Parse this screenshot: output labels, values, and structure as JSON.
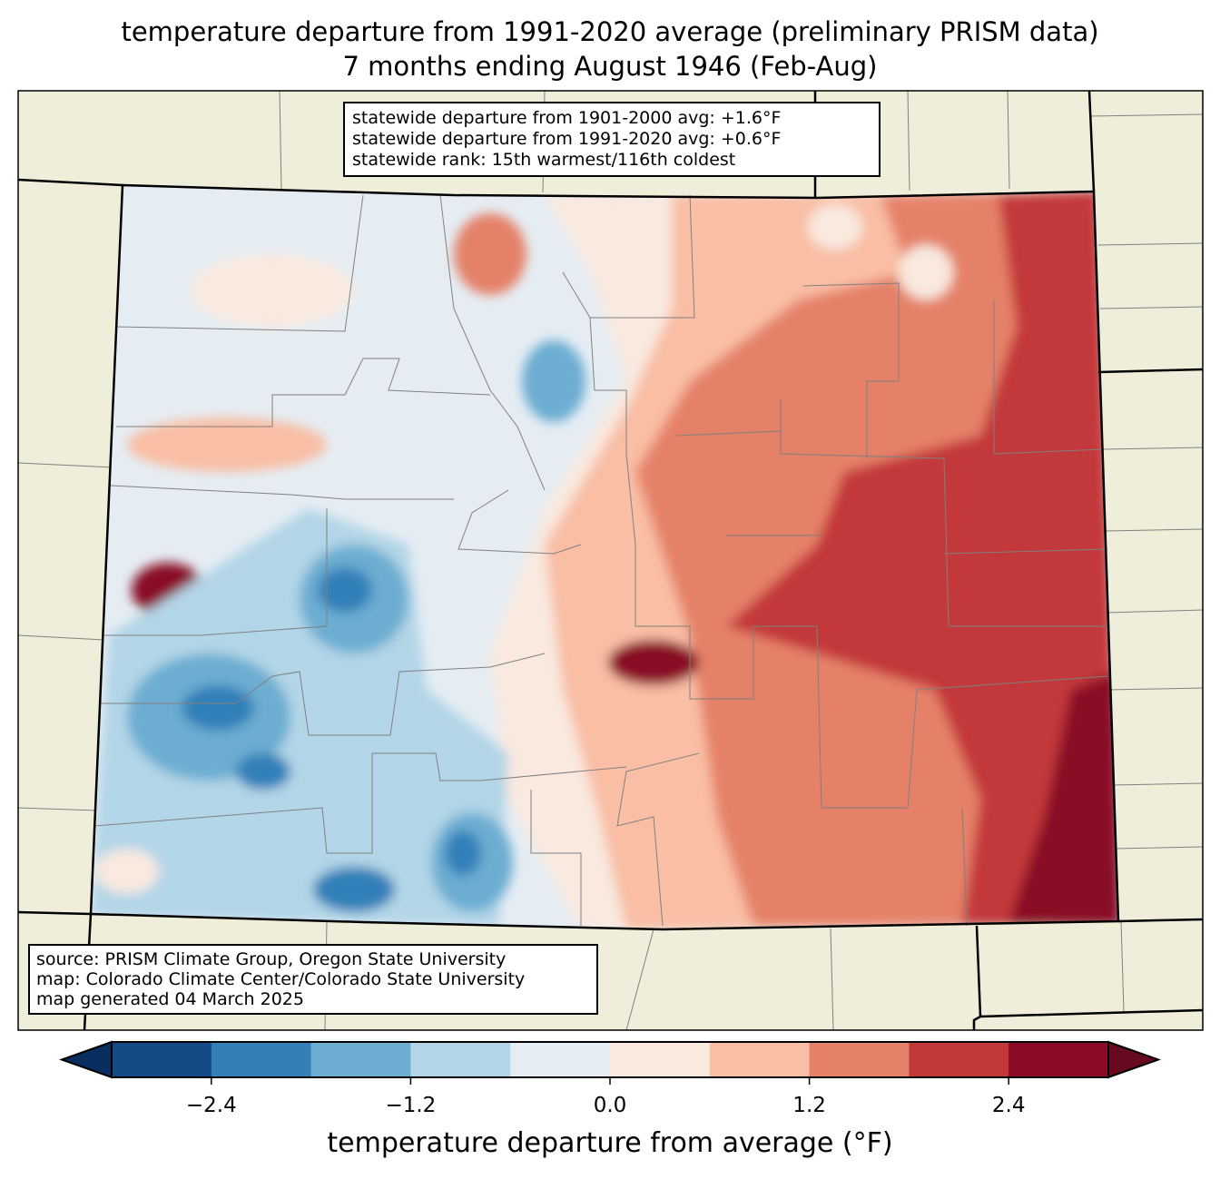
{
  "title": {
    "line1": "temperature departure from 1991-2020 average (preliminary PRISM data)",
    "line2": "7 months ending August 1946 (Feb-Aug)"
  },
  "info_box": {
    "line1": "statewide departure from 1901-2000 avg: +1.6°F",
    "line2": "statewide departure from 1991-2020 avg: +0.6°F",
    "line3": "statewide rank: 15th warmest/116th coldest"
  },
  "source_box": {
    "line1": "source: PRISM Climate Group, Oregon State University",
    "line2": "map: Colorado Climate Center/Colorado State University",
    "line3": "map generated 04 March 2025"
  },
  "colorbar": {
    "label": "temperature departure from average (°F)",
    "ticks": [
      "−2.4",
      "−1.2",
      "0.0",
      "1.2",
      "2.4"
    ],
    "bins": [
      -3.0,
      -2.4,
      -1.8,
      -1.2,
      -0.6,
      0.0,
      0.6,
      1.2,
      1.8,
      2.4,
      3.0
    ],
    "colors": [
      "#154a86",
      "#3380b9",
      "#6cadd1",
      "#b2d5e7",
      "#e5edf3",
      "#f9e9df",
      "#f9bea4",
      "#e58169",
      "#c3393a",
      "#8a0b26"
    ],
    "under_color": "#082f5f",
    "over_color": "#670a20"
  },
  "map_colors": {
    "land": "#efeedb",
    "border": "#000000",
    "county": "#808080"
  }
}
